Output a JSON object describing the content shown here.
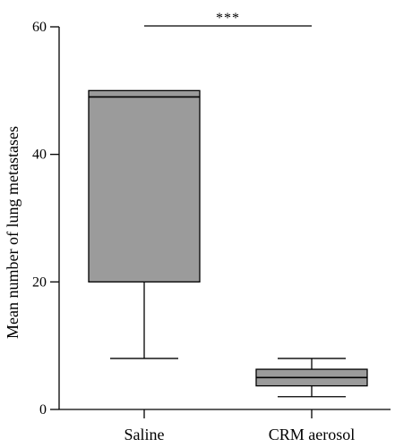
{
  "chart_data": {
    "type": "box",
    "title": "",
    "xlabel": "",
    "ylabel": "Mean number of lung metastases",
    "ylim": [
      0,
      60
    ],
    "y_ticks": [
      0,
      20,
      40,
      60
    ],
    "categories": [
      "Saline",
      "CRM aerosol"
    ],
    "boxes": [
      {
        "category": "Saline",
        "whisker_low": 8,
        "q1": 20,
        "median": 49,
        "q3": 50,
        "whisker_high": 50
      },
      {
        "category": "CRM aerosol",
        "whisker_low": 2,
        "q1": 3.7,
        "median": 5,
        "q3": 6.3,
        "whisker_high": 8
      }
    ],
    "significance": {
      "between": [
        "Saline",
        "CRM aerosol"
      ],
      "label": "***"
    },
    "box_fill": "#9b9b9b",
    "line_color": "#000000",
    "grid": false
  }
}
